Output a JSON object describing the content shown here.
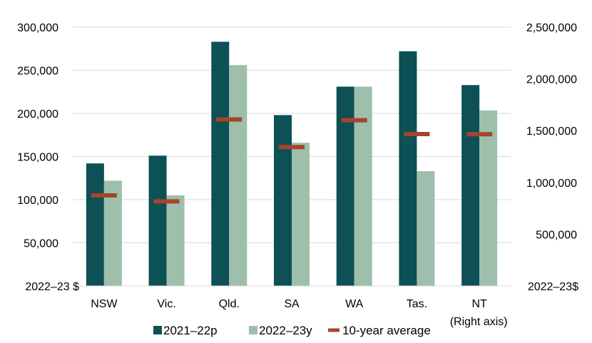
{
  "chart_data": {
    "type": "bar",
    "categories": [
      "NSW",
      "Vic.",
      "Qld.",
      "SA",
      "WA",
      "Tas.",
      "NT"
    ],
    "category_notes": {
      "NT": "(Right axis)"
    },
    "series": [
      {
        "name": "2021–22p",
        "color": "#0d5055",
        "values": [
          142000,
          151000,
          283000,
          198000,
          231000,
          272000,
          1940000
        ]
      },
      {
        "name": "2022–23y",
        "color": "#9dbfab",
        "values": [
          122000,
          105000,
          256000,
          166000,
          231000,
          133000,
          1695000
        ]
      },
      {
        "name": "10-year average",
        "color": "#a8432c",
        "marker": "dash",
        "values": [
          105000,
          98000,
          193000,
          161000,
          192000,
          176000,
          1465000
        ]
      }
    ],
    "right_axis_categories": [
      "NT"
    ],
    "left_axis": {
      "ylim": [
        0,
        300000
      ],
      "ticks": [
        50000,
        100000,
        150000,
        200000,
        250000,
        300000
      ],
      "tick_labels": [
        "50,000",
        "100,000",
        "150,000",
        "200,000",
        "250,000",
        "300,000"
      ],
      "unit_label": "2022–23 $"
    },
    "right_axis": {
      "ylim": [
        0,
        2500000
      ],
      "ticks": [
        500000,
        1000000,
        1500000,
        2000000,
        2500000
      ],
      "tick_labels": [
        "500,000",
        "1,000,000",
        "1,500,000",
        "2,000,000",
        "2,500,000"
      ],
      "unit_label": "2022–23$"
    },
    "grid": true,
    "legend_position": "bottom-center"
  }
}
